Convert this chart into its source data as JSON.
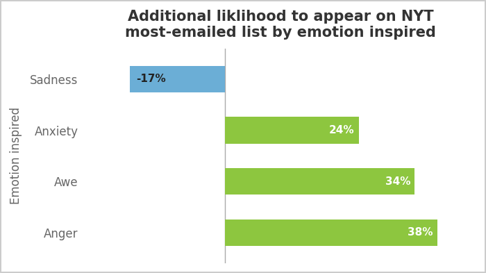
{
  "title": "Additional liklihood to appear on NYT\nmost-emailed list by emotion inspired",
  "ylabel": "Emotion inspired",
  "categories": [
    "Anger",
    "Awe",
    "Anxiety",
    "Sadness"
  ],
  "values": [
    38,
    34,
    24,
    -17
  ],
  "bar_colors": [
    "#8dc63f",
    "#8dc63f",
    "#8dc63f",
    "#6baed6"
  ],
  "bar_labels": [
    "38%",
    "34%",
    "24%",
    "-17%"
  ],
  "xlim": [
    -25,
    45
  ],
  "title_fontsize": 15,
  "label_fontsize": 11,
  "tick_fontsize": 12,
  "ylabel_fontsize": 12,
  "background_color": "#ffffff",
  "bar_height": 0.52,
  "zero_line_color": "#aaaaaa",
  "border_color": "#cccccc"
}
